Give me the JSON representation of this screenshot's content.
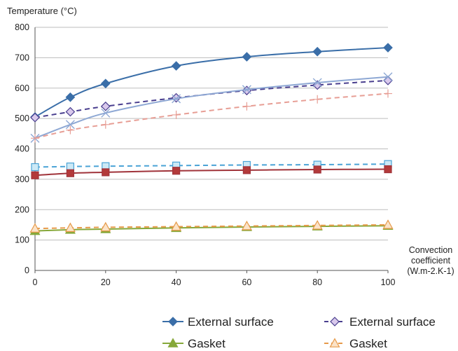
{
  "chart_data": {
    "type": "line",
    "ylabel": "Temperature (°C)",
    "xlabel_lines": [
      "Convection",
      "coefficient",
      "(W.m-2.K-1)"
    ],
    "xlim": [
      0,
      100
    ],
    "ylim": [
      0,
      800
    ],
    "x_ticks": [
      0,
      20,
      40,
      60,
      80,
      100
    ],
    "y_ticks": [
      0,
      100,
      200,
      300,
      400,
      500,
      600,
      700,
      800
    ],
    "grid": "horizontal",
    "legend_position": "bottom",
    "series": [
      {
        "name": "External surface",
        "color": "#3a6ea8",
        "dash": "solid",
        "marker": "diamond",
        "marker_fill": "#3a6ea8",
        "legend": true,
        "x": [
          0,
          10,
          20,
          40,
          60,
          80,
          100
        ],
        "y": [
          505,
          570,
          615,
          673,
          703,
          720,
          733
        ]
      },
      {
        "name": "External surface",
        "color": "#4a3f8f",
        "dash": "dashed",
        "marker": "diamond",
        "marker_fill": "#d9c9ec",
        "legend": true,
        "x": [
          0,
          10,
          20,
          40,
          60,
          80,
          100
        ],
        "y": [
          503,
          522,
          540,
          568,
          592,
          610,
          625
        ]
      },
      {
        "name": "",
        "color": "#8ea8d4",
        "dash": "solid",
        "marker": "x",
        "marker_fill": "none",
        "legend": false,
        "x": [
          0,
          10,
          20,
          40,
          60,
          80,
          100
        ],
        "y": [
          435,
          480,
          518,
          565,
          595,
          618,
          637
        ]
      },
      {
        "name": "",
        "color": "#e79e95",
        "dash": "dashed",
        "marker": "plus",
        "marker_fill": "none",
        "legend": false,
        "x": [
          0,
          10,
          20,
          40,
          60,
          80,
          100
        ],
        "y": [
          435,
          462,
          480,
          512,
          540,
          563,
          582
        ]
      },
      {
        "name": "",
        "color": "#4aa3d6",
        "dash": "dashed",
        "marker": "square",
        "marker_fill": "#cce9f6",
        "legend": false,
        "x": [
          0,
          10,
          20,
          40,
          60,
          80,
          100
        ],
        "y": [
          340,
          342,
          343,
          345,
          347,
          348,
          350
        ]
      },
      {
        "name": "",
        "color": "#a0333a",
        "dash": "solid",
        "marker": "square",
        "marker_fill": "#b33a3a",
        "legend": false,
        "x": [
          0,
          10,
          20,
          40,
          60,
          80,
          100
        ],
        "y": [
          313,
          320,
          323,
          328,
          330,
          332,
          333
        ]
      },
      {
        "name": "Gasket",
        "color": "#86a83a",
        "dash": "solid",
        "marker": "triangle",
        "marker_fill": "#86a83a",
        "legend": true,
        "x": [
          0,
          10,
          20,
          40,
          60,
          80,
          100
        ],
        "y": [
          130,
          134,
          136,
          140,
          143,
          145,
          147
        ]
      },
      {
        "name": "Gasket",
        "color": "#e69a4a",
        "dash": "dashed",
        "marker": "triangle",
        "marker_fill": "#fbe3c8",
        "legend": true,
        "x": [
          0,
          10,
          20,
          40,
          60,
          80,
          100
        ],
        "y": [
          138,
          140,
          142,
          144,
          146,
          148,
          150
        ]
      }
    ]
  }
}
